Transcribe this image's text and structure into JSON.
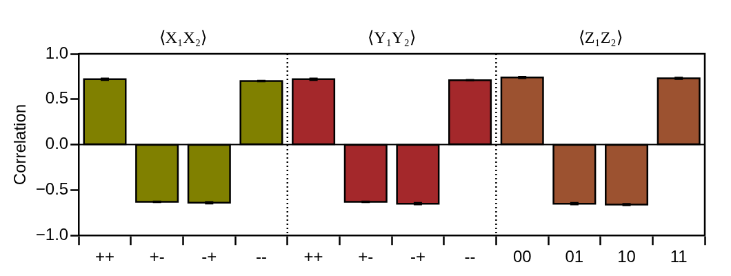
{
  "chart_data": {
    "type": "bar",
    "ylabel": "Correlation",
    "categories": [
      "++",
      "+-",
      "-+",
      "--",
      "++",
      "+-",
      "-+",
      "--",
      "00",
      "01",
      "10",
      "11"
    ],
    "values": [
      0.72,
      -0.63,
      -0.64,
      0.7,
      0.72,
      -0.63,
      -0.65,
      0.71,
      0.74,
      -0.65,
      -0.66,
      0.73
    ],
    "errors": [
      0.01,
      0.005,
      0.01,
      0.005,
      0.01,
      0.005,
      0.01,
      0.005,
      0.01,
      0.01,
      0.01,
      0.01
    ],
    "colors": [
      "#808000",
      "#808000",
      "#808000",
      "#808000",
      "#a4282b",
      "#a4282b",
      "#a4282b",
      "#a4282b",
      "#9c5230",
      "#9c5230",
      "#9c5230",
      "#9c5230"
    ],
    "ylim": [
      -1.0,
      1.0
    ],
    "yticks": [
      {
        "value": -1,
        "label": "−1.0"
      },
      {
        "value": -0.5,
        "label": "−0.5"
      },
      {
        "value": 0,
        "label": "0.0"
      },
      {
        "value": 0.5,
        "label": "0.5"
      },
      {
        "value": 1,
        "label": "1.0"
      }
    ],
    "annotations": [
      "⟨X₁X₂⟩",
      "⟨Y₁Y₂⟩",
      "⟨Z₁Z₂⟩"
    ],
    "ref_lines": [
      {
        "axis": "y",
        "value": 0,
        "line_style": "solid",
        "color": "#000000"
      }
    ],
    "grid": false,
    "legend": false
  }
}
